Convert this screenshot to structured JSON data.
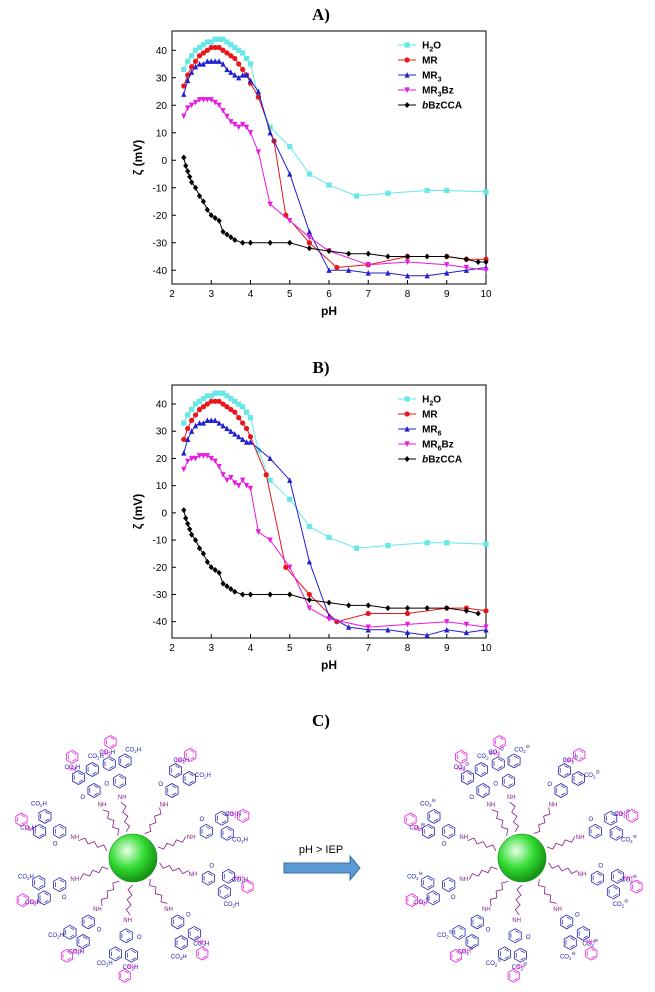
{
  "chart_data": [
    {
      "type": "line",
      "panel": "A)",
      "xlabel": "pH",
      "ylabel": "ζ (mV)",
      "xlim": [
        2,
        10
      ],
      "ylim": [
        -45,
        47
      ],
      "xticks": [
        2,
        3,
        4,
        5,
        6,
        7,
        8,
        9,
        10
      ],
      "yticks": [
        -40,
        -30,
        -20,
        -10,
        0,
        10,
        20,
        30,
        40
      ],
      "legend_position": "top-right",
      "grid": false,
      "series": [
        {
          "name": "H",
          "sub": "2",
          "tail": "O",
          "color": "#66e8e8",
          "marker": "square",
          "x": [
            2.3,
            2.4,
            2.5,
            2.6,
            2.7,
            2.8,
            2.9,
            3.0,
            3.1,
            3.2,
            3.3,
            3.4,
            3.5,
            3.6,
            3.7,
            3.8,
            3.9,
            4.0,
            4.2,
            4.5,
            5.0,
            5.5,
            6.0,
            6.7,
            7.5,
            8.5,
            9.0,
            10.0
          ],
          "y": [
            33,
            36,
            38,
            40,
            41,
            42,
            43,
            43,
            44,
            44,
            44,
            43,
            42,
            41,
            40,
            39,
            37,
            35,
            23,
            12,
            5,
            -5,
            -9,
            -13,
            -12,
            -11,
            -11,
            -11.5
          ]
        },
        {
          "name": "MR",
          "sub": "",
          "tail": "",
          "color": "#e8161a",
          "marker": "circle",
          "x": [
            2.3,
            2.4,
            2.5,
            2.6,
            2.7,
            2.8,
            2.9,
            3.0,
            3.1,
            3.2,
            3.3,
            3.4,
            3.5,
            3.6,
            3.7,
            3.8,
            3.9,
            4.0,
            4.2,
            4.6,
            4.9,
            5.5,
            6.2,
            7.0,
            8.0,
            9.0,
            9.5,
            10.0
          ],
          "y": [
            27,
            31,
            34,
            36,
            38,
            39,
            40,
            41,
            41,
            41,
            40,
            39,
            38,
            37,
            35,
            33,
            31,
            28,
            23,
            7,
            -20,
            -30,
            -39,
            -38,
            -35,
            -35,
            -36,
            -36
          ]
        },
        {
          "name": "MR",
          "sub": "3",
          "tail": "",
          "color": "#2020d0",
          "marker": "triangle",
          "x": [
            2.3,
            2.4,
            2.5,
            2.6,
            2.7,
            2.8,
            2.9,
            3.0,
            3.1,
            3.2,
            3.3,
            3.4,
            3.5,
            3.6,
            3.7,
            3.8,
            3.9,
            4.0,
            4.2,
            4.5,
            5.0,
            5.5,
            6.0,
            6.5,
            7.0,
            7.5,
            8.0,
            8.5,
            9.0,
            9.5,
            10.0
          ],
          "y": [
            24,
            29,
            32,
            34,
            35,
            35,
            36,
            36,
            36,
            36,
            35,
            33,
            32,
            31,
            30,
            31,
            31,
            29,
            25,
            10,
            -5,
            -26,
            -40,
            -40,
            -41,
            -41,
            -42,
            -42,
            -41,
            -40,
            -39
          ]
        },
        {
          "name": "MR",
          "sub": "3",
          "tail": "Bz",
          "color": "#e81ae0",
          "marker": "triangle-down",
          "x": [
            2.3,
            2.4,
            2.5,
            2.6,
            2.7,
            2.8,
            2.9,
            3.0,
            3.1,
            3.2,
            3.3,
            3.4,
            3.5,
            3.6,
            3.7,
            3.8,
            3.9,
            4.0,
            4.2,
            4.5,
            5.0,
            5.5,
            6.0,
            7.0,
            8.0,
            9.0,
            9.5,
            10.0
          ],
          "y": [
            16,
            19,
            20,
            21,
            22,
            22,
            22,
            22,
            21,
            20,
            18,
            16,
            14,
            13,
            12,
            13,
            12,
            10,
            3,
            -16,
            -22,
            -28,
            -33,
            -38,
            -37,
            -38,
            -39,
            -40
          ]
        },
        {
          "name": "bBzCCA",
          "sub": "",
          "tail": "",
          "color": "#000000",
          "marker": "diamond",
          "x": [
            2.3,
            2.35,
            2.4,
            2.45,
            2.5,
            2.6,
            2.7,
            2.8,
            2.9,
            3.0,
            3.1,
            3.2,
            3.3,
            3.4,
            3.5,
            3.6,
            3.8,
            4.0,
            4.5,
            5.0,
            5.5,
            6.0,
            6.5,
            7.0,
            7.5,
            8.0,
            8.5,
            9.0,
            9.5,
            9.8,
            10.0
          ],
          "y": [
            1,
            -2,
            -4,
            -6,
            -8,
            -10,
            -13,
            -15,
            -18,
            -20,
            -21,
            -22,
            -26,
            -27,
            -28,
            -29,
            -30,
            -30,
            -30,
            -30,
            -32,
            -33,
            -34,
            -34,
            -35,
            -35,
            -35,
            -35,
            -36,
            -37,
            -37
          ]
        }
      ]
    },
    {
      "type": "line",
      "panel": "B)",
      "xlabel": "pH",
      "ylabel": "ζ (mV)",
      "xlim": [
        2,
        10
      ],
      "ylim": [
        -46,
        47
      ],
      "xticks": [
        2,
        3,
        4,
        5,
        6,
        7,
        8,
        9,
        10
      ],
      "yticks": [
        -40,
        -30,
        -20,
        -10,
        0,
        10,
        20,
        30,
        40
      ],
      "legend_position": "top-right",
      "grid": false,
      "series": [
        {
          "name": "H",
          "sub": "2",
          "tail": "O",
          "color": "#66e8e8",
          "marker": "square",
          "x": [
            2.3,
            2.4,
            2.5,
            2.6,
            2.7,
            2.8,
            2.9,
            3.0,
            3.1,
            3.2,
            3.3,
            3.4,
            3.5,
            3.6,
            3.7,
            3.8,
            3.9,
            4.0,
            4.2,
            4.5,
            5.0,
            5.5,
            6.0,
            6.7,
            7.5,
            8.5,
            9.0,
            10.0
          ],
          "y": [
            33,
            36,
            38,
            40,
            41,
            42,
            43,
            43,
            44,
            44,
            44,
            43,
            42,
            41,
            40,
            39,
            37,
            35,
            23,
            12,
            5,
            -5,
            -9,
            -13,
            -12,
            -11,
            -11,
            -11.5
          ]
        },
        {
          "name": "MR",
          "sub": "",
          "tail": "",
          "color": "#e8161a",
          "marker": "circle",
          "x": [
            2.3,
            2.4,
            2.5,
            2.6,
            2.7,
            2.8,
            2.9,
            3.0,
            3.1,
            3.2,
            3.3,
            3.4,
            3.5,
            3.6,
            3.7,
            3.8,
            3.9,
            4.0,
            4.4,
            4.9,
            5.5,
            6.2,
            7.0,
            8.0,
            9.0,
            9.5,
            10.0
          ],
          "y": [
            27,
            31,
            34,
            36,
            38,
            39,
            40,
            41,
            41,
            41,
            40,
            39,
            38,
            37,
            35,
            33,
            31,
            28,
            14,
            -20,
            -30,
            -40,
            -37,
            -37,
            -35,
            -35,
            -36
          ]
        },
        {
          "name": "MR",
          "sub": "6",
          "tail": "",
          "color": "#2020d0",
          "marker": "triangle",
          "x": [
            2.3,
            2.4,
            2.5,
            2.6,
            2.7,
            2.8,
            2.9,
            3.0,
            3.1,
            3.2,
            3.3,
            3.4,
            3.5,
            3.6,
            3.7,
            3.8,
            3.9,
            4.0,
            4.5,
            5.0,
            5.5,
            6.0,
            6.5,
            7.0,
            7.5,
            8.0,
            8.5,
            9.0,
            9.5,
            10.0
          ],
          "y": [
            22,
            27,
            30,
            32,
            33,
            33,
            34,
            34,
            34,
            33,
            32,
            31,
            30,
            29,
            28,
            27,
            26,
            26,
            20,
            12,
            -18,
            -38,
            -42,
            -43,
            -43,
            -44,
            -45,
            -43,
            -44,
            -43
          ]
        },
        {
          "name": "MR",
          "sub": "6",
          "tail": "Bz",
          "color": "#e81ae0",
          "marker": "triangle-down",
          "x": [
            2.3,
            2.4,
            2.5,
            2.6,
            2.7,
            2.8,
            2.9,
            3.0,
            3.1,
            3.2,
            3.3,
            3.4,
            3.5,
            3.6,
            3.7,
            3.8,
            3.9,
            4.0,
            4.2,
            4.5,
            5.0,
            5.5,
            6.0,
            7.0,
            8.0,
            9.0,
            9.5,
            10.0
          ],
          "y": [
            16,
            19,
            20,
            20,
            21,
            21,
            21,
            20,
            19,
            17,
            14,
            12,
            13,
            11,
            10,
            12,
            10,
            9,
            -7,
            -10,
            -20,
            -35,
            -39,
            -42,
            -41,
            -40,
            -41,
            -42
          ]
        },
        {
          "name": "bBzCCA",
          "sub": "",
          "tail": "",
          "color": "#000000",
          "marker": "diamond",
          "x": [
            2.3,
            2.35,
            2.4,
            2.45,
            2.5,
            2.6,
            2.7,
            2.8,
            2.9,
            3.0,
            3.1,
            3.2,
            3.3,
            3.4,
            3.5,
            3.6,
            3.8,
            4.0,
            4.5,
            5.0,
            5.5,
            6.0,
            6.5,
            7.0,
            7.5,
            8.0,
            8.5,
            9.0,
            9.5,
            9.8
          ],
          "y": [
            1,
            -2,
            -4,
            -6,
            -8,
            -10,
            -13,
            -15,
            -18,
            -20,
            -21,
            -22,
            -26,
            -27,
            -28,
            -29,
            -30,
            -30,
            -30,
            -30,
            -32,
            -33,
            -34,
            -34,
            -35,
            -35,
            -35,
            -35,
            -36,
            -37
          ]
        }
      ]
    }
  ],
  "scheme": {
    "panel": "C)",
    "arrow_label": "pH > IEP",
    "colors": {
      "particle": "#33dd33",
      "arm": "#8a1a8a",
      "core": "#2222aa",
      "benzyl": "#e81ae0",
      "arrow": "#5b9bd5"
    },
    "labels": {
      "acid": "CO",
      "acid_sub": "2",
      "acid_tail": "H",
      "anion": "CO",
      "anion_sub": "2",
      "anion_sup": "⊖",
      "amide_nh": "NH",
      "oxo": "O",
      "hn": "HN"
    }
  }
}
